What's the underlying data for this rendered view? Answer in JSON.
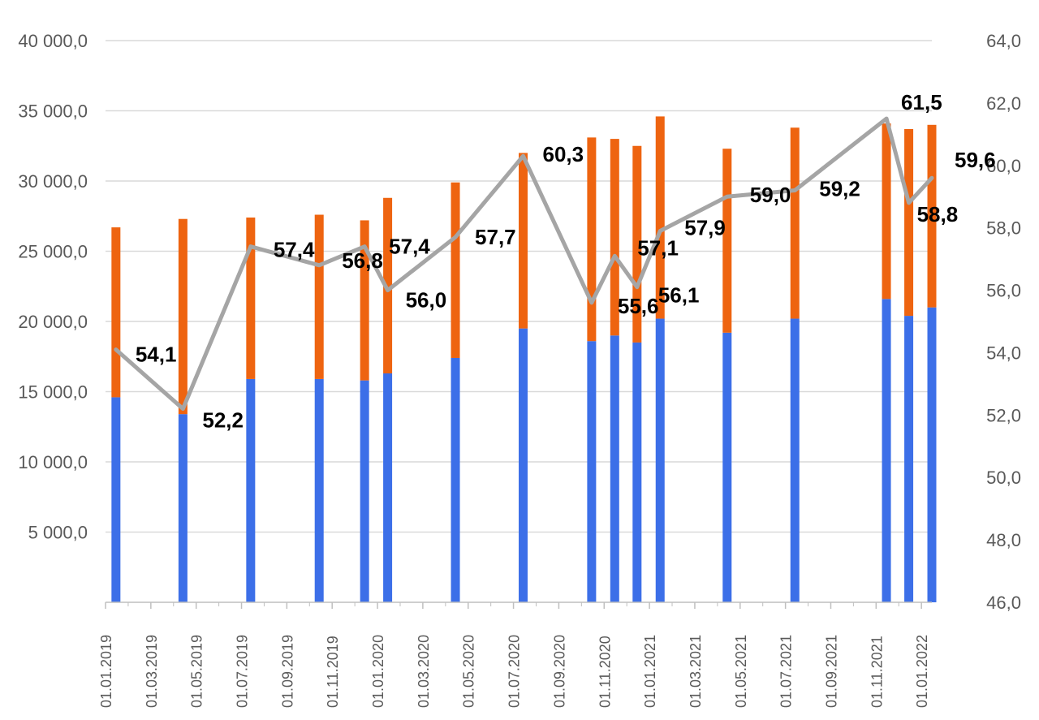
{
  "chart_data": {
    "type": "bar",
    "stacked": true,
    "y_left_ticks": [
      "40 000,0",
      "35 000,0",
      "30 000,0",
      "25 000,0",
      "20 000,0",
      "15 000,0",
      "10 000,0",
      "5 000,0"
    ],
    "y_right_ticks": [
      "64,0",
      "62,0",
      "60,0",
      "58,0",
      "56,0",
      "54,0",
      "52,0",
      "50,0",
      "48,0",
      "46,0"
    ],
    "ylim_left": [
      0,
      40000
    ],
    "ylim_right": [
      46,
      64
    ],
    "x_ticks": [
      "01.01.2019",
      "01.03.2019",
      "01.05.2019",
      "01.07.2019",
      "01.09.2019",
      "01.11.2019",
      "01.01.2020",
      "01.03.2020",
      "01.05.2020",
      "01.07.2020",
      "01.09.2020",
      "01.11.2020",
      "01.01.2021",
      "01.03.2021",
      "01.05.2021",
      "01.07.2021",
      "01.09.2021",
      "01.11.2021",
      "01.01.2022"
    ],
    "x_range": [
      "2019-01-01",
      "2022-01-15"
    ],
    "grid": true,
    "colors": {
      "blue": "#3c6fe8",
      "orange": "#ee6410",
      "line": "#a5a5a5",
      "grid": "#d9d9d9",
      "axis": "#bfbfbf"
    },
    "bars": [
      {
        "date": "2019-01-15",
        "blue": 14600,
        "orange": 12100
      },
      {
        "date": "2019-04-15",
        "blue": 13400,
        "orange": 13900
      },
      {
        "date": "2019-07-15",
        "blue": 15900,
        "orange": 11500
      },
      {
        "date": "2019-10-15",
        "blue": 15900,
        "orange": 11700
      },
      {
        "date": "2019-12-15",
        "blue": 15800,
        "orange": 11400
      },
      {
        "date": "2020-01-15",
        "blue": 16300,
        "orange": 12500
      },
      {
        "date": "2020-04-15",
        "blue": 17400,
        "orange": 12500
      },
      {
        "date": "2020-07-15",
        "blue": 19500,
        "orange": 12500
      },
      {
        "date": "2020-10-15",
        "blue": 18600,
        "orange": 14500
      },
      {
        "date": "2020-11-15",
        "blue": 19000,
        "orange": 14000
      },
      {
        "date": "2020-12-15",
        "blue": 18500,
        "orange": 14000
      },
      {
        "date": "2021-01-15",
        "blue": 20200,
        "orange": 14400
      },
      {
        "date": "2021-04-15",
        "blue": 19200,
        "orange": 13100
      },
      {
        "date": "2021-07-15",
        "blue": 20200,
        "orange": 13600
      },
      {
        "date": "2021-11-15",
        "blue": 21600,
        "orange": 12500
      },
      {
        "date": "2021-12-15",
        "blue": 20400,
        "orange": 13300
      },
      {
        "date": "2022-01-15",
        "blue": 21000,
        "orange": 13000
      }
    ],
    "line": [
      {
        "date": "2019-01-15",
        "value": 54.1
      },
      {
        "date": "2019-04-15",
        "value": 52.2
      },
      {
        "date": "2019-07-15",
        "value": 57.4
      },
      {
        "date": "2019-10-15",
        "value": 56.8
      },
      {
        "date": "2019-12-15",
        "value": 57.4
      },
      {
        "date": "2020-01-15",
        "value": 56.0
      },
      {
        "date": "2020-04-15",
        "value": 57.7
      },
      {
        "date": "2020-07-15",
        "value": 60.3
      },
      {
        "date": "2020-10-15",
        "value": 55.6
      },
      {
        "date": "2020-11-15",
        "value": 57.1
      },
      {
        "date": "2020-12-15",
        "value": 56.1
      },
      {
        "date": "2021-01-15",
        "value": 57.9
      },
      {
        "date": "2021-04-15",
        "value": 59.0
      },
      {
        "date": "2021-07-15",
        "value": 59.2
      },
      {
        "date": "2021-11-15",
        "value": 61.5
      },
      {
        "date": "2021-12-15",
        "value": 58.8
      },
      {
        "date": "2022-01-15",
        "value": 59.6
      }
    ],
    "point_labels": [
      "54,1",
      "52,2",
      "57,4",
      "56,8",
      "57,4",
      "56,0",
      "57,7",
      "60,3",
      "55,6",
      "57,1",
      "56,1",
      "57,9",
      "59,0",
      "59,2",
      "61,5",
      "58,8",
      "59,6"
    ]
  }
}
